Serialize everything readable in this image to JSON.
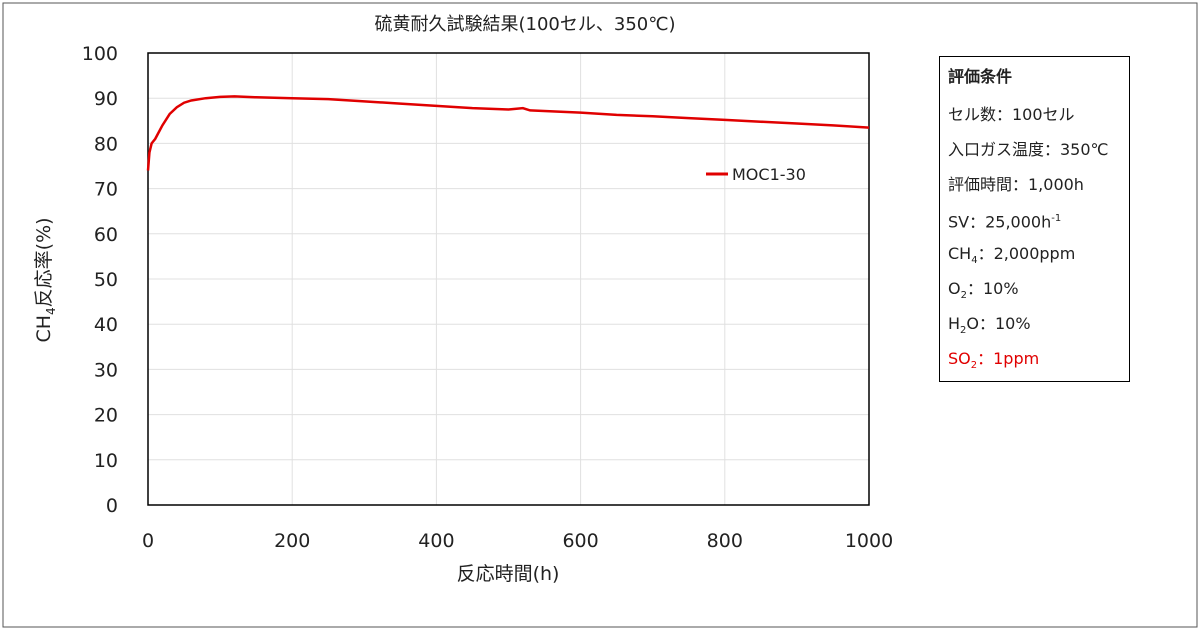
{
  "chart_data": {
    "type": "line",
    "title": "硫黄耐久試験結果(100セル、350℃)",
    "x_label": "反応時間(h)",
    "y_label": {
      "text": "CH",
      "sub": "4",
      "rest": "反応率(%)"
    },
    "x": [
      0,
      2,
      5,
      10,
      20,
      30,
      40,
      50,
      60,
      80,
      100,
      120,
      150,
      200,
      250,
      300,
      350,
      400,
      450,
      500,
      520,
      530,
      600,
      650,
      700,
      750,
      800,
      850,
      900,
      950,
      1000
    ],
    "series": [
      {
        "name": "MOC1-30",
        "color": "#e00000",
        "values": [
          74,
          78,
          80,
          81,
          84,
          86.5,
          88,
          89,
          89.5,
          90,
          90.3,
          90.4,
          90.2,
          90,
          89.8,
          89.3,
          88.8,
          88.3,
          87.8,
          87.5,
          87.8,
          87.3,
          86.8,
          86.3,
          86,
          85.6,
          85.2,
          84.8,
          84.4,
          84,
          83.5
        ]
      }
    ],
    "xlim": [
      0,
      1000
    ],
    "xticks": [
      0,
      200,
      400,
      600,
      800,
      1000
    ],
    "ylim": [
      0,
      100
    ],
    "yticks": [
      0,
      10,
      20,
      30,
      40,
      50,
      60,
      70,
      80,
      90,
      100
    ],
    "grid": true
  },
  "conditions": {
    "title": "評価条件",
    "lines": [
      {
        "text": "セル数：100セル"
      },
      {
        "text": "入口ガス温度：350℃"
      },
      {
        "text": "評価時間：1,000h"
      },
      {
        "text": "SV：25,000h",
        "sup": "-1"
      },
      {
        "text": "CH",
        "sub": "4",
        "rest": "：2,000ppm"
      },
      {
        "text": "O",
        "sub": "2",
        "rest": "：10%"
      },
      {
        "text": "H",
        "sub": "2",
        "rest": "O：10%"
      },
      {
        "text": "SO",
        "sub": "2",
        "rest": "：1ppm",
        "color": "#e00000"
      }
    ]
  }
}
